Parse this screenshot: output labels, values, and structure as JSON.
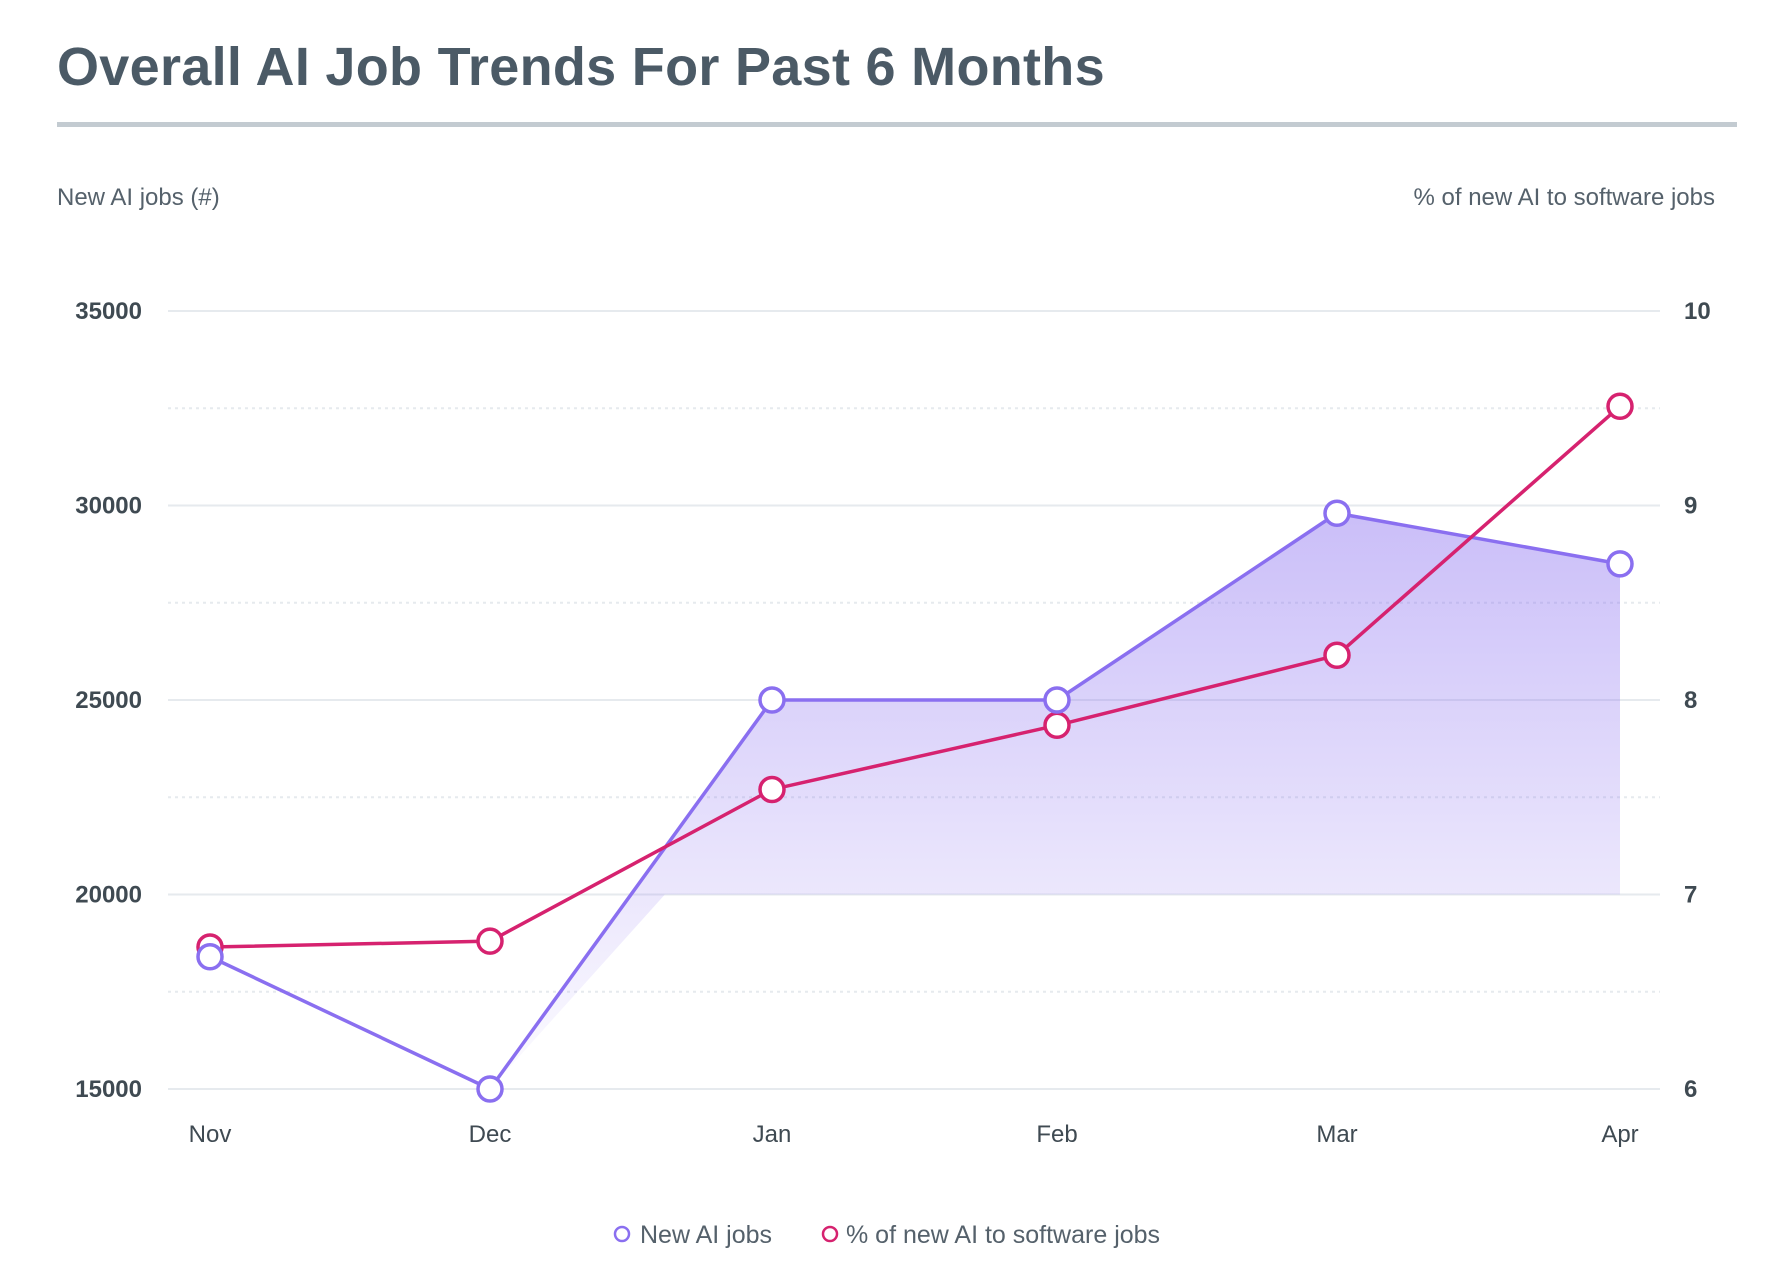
{
  "chart_data": {
    "type": "line",
    "title": "Overall AI Job Trends For Past 6 Months",
    "ylabel_left": "New AI jobs (#)",
    "ylabel_right": "% of new AI to software jobs",
    "categories": [
      "Nov",
      "Dec",
      "Jan",
      "Feb",
      "Mar",
      "Apr"
    ],
    "y_left": {
      "range": [
        15000,
        35000
      ],
      "ticks": [
        "15000",
        "20000",
        "25000",
        "30000",
        "35000"
      ]
    },
    "y_right": {
      "range": [
        6,
        10
      ],
      "ticks": [
        "6",
        "7",
        "8",
        "9",
        "10"
      ]
    },
    "grid": true,
    "legend_placement": "bottom",
    "series": [
      {
        "name": "New AI jobs",
        "axis": "left",
        "color": "#8a6ff0",
        "fill": true,
        "values": [
          18400,
          15000,
          25000,
          25000,
          29800,
          28500
        ]
      },
      {
        "name": "% of new AI to software jobs",
        "axis": "right",
        "color": "#d6226f",
        "values": [
          6.73,
          6.76,
          7.54,
          7.87,
          8.23,
          9.51
        ]
      }
    ]
  }
}
